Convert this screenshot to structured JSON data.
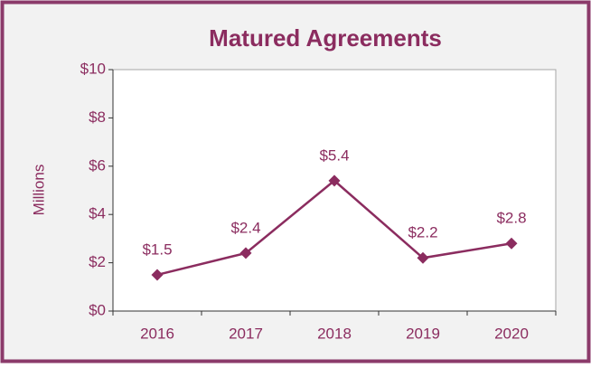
{
  "chart_data": {
    "type": "line",
    "title": "Matured Agreements",
    "y_label": "Millions",
    "categories": [
      "2016",
      "2017",
      "2018",
      "2019",
      "2020"
    ],
    "series": [
      {
        "name": "Matured Agreements",
        "color": "#8b2c5f",
        "values": [
          1.5,
          2.4,
          5.4,
          2.2,
          2.8
        ],
        "value_labels": [
          "$1.5",
          "$2.4",
          "$5.4",
          "$2.2",
          "$2.8"
        ]
      }
    ],
    "ylim": [
      0,
      10
    ],
    "yticks": [
      {
        "value": 0,
        "label": "$0"
      },
      {
        "value": 2,
        "label": "$2"
      },
      {
        "value": 4,
        "label": "$4"
      },
      {
        "value": 6,
        "label": "$6"
      },
      {
        "value": 8,
        "label": "$8"
      },
      {
        "value": 10,
        "label": "$10"
      }
    ],
    "grid": false
  }
}
